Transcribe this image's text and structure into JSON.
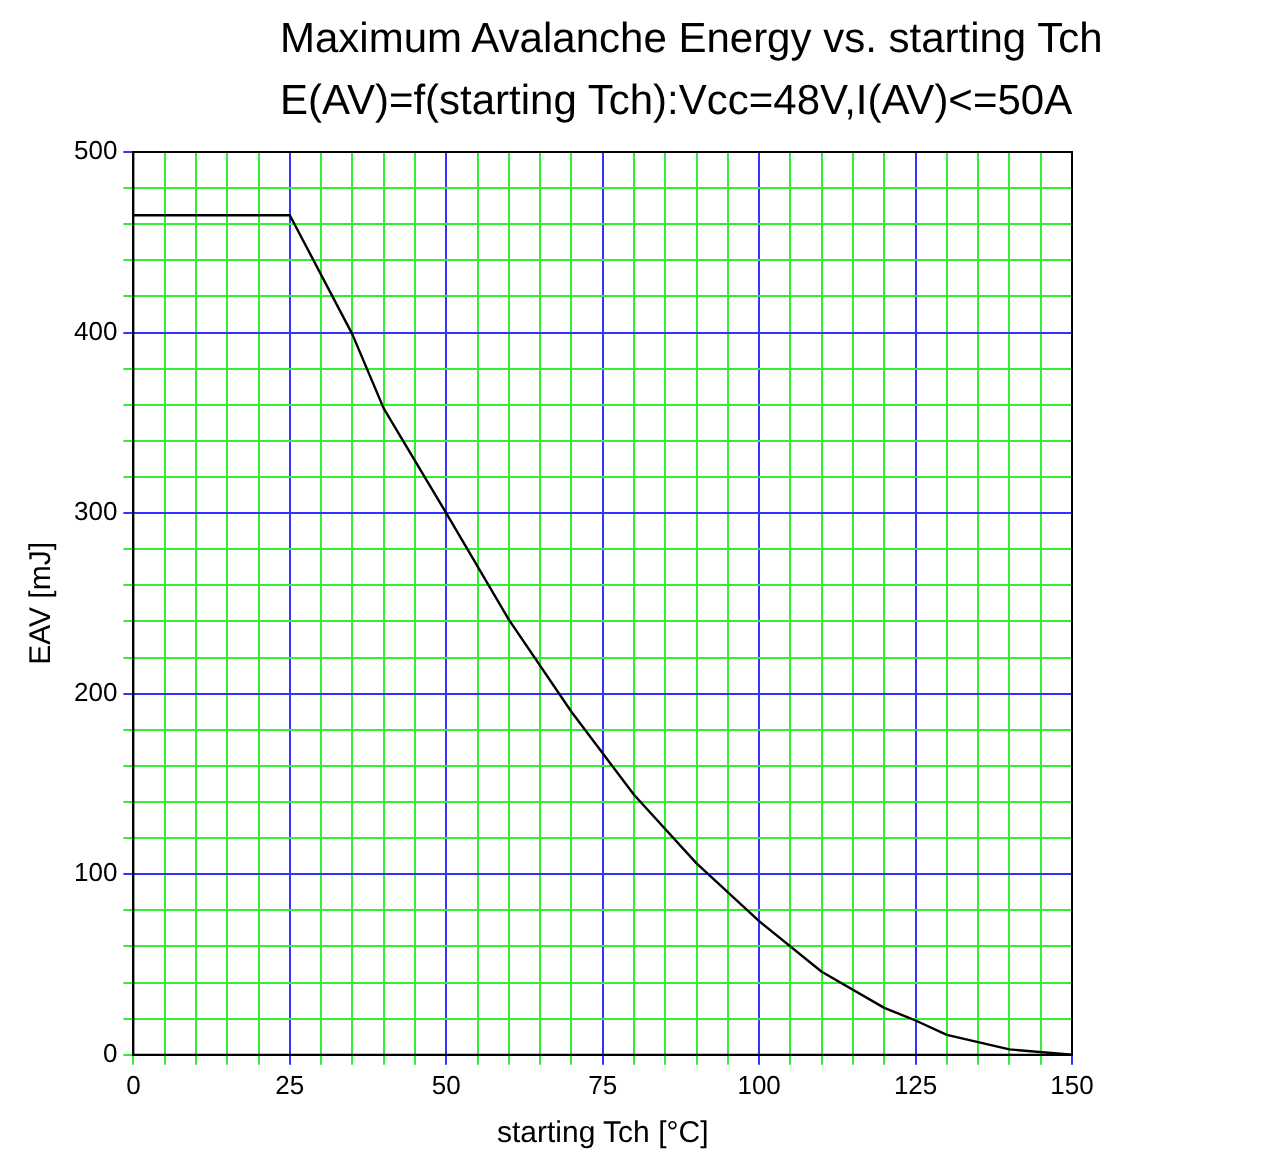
{
  "chart_data": {
    "type": "line",
    "title": "Maximum Avalanche Energy vs. starting Tch",
    "subtitle": "E(AV)=f(starting Tch):Vcc=48V,I(AV)<=50A",
    "xlabel": "starting Tch [°C]",
    "ylabel": "EAV [mJ]",
    "x": [
      0,
      25,
      35,
      40,
      50,
      60,
      70,
      75,
      80,
      90,
      100,
      110,
      120,
      125,
      130,
      140,
      150
    ],
    "series": [
      {
        "color": "#000000",
        "values": [
          465,
          465,
          399,
          358,
          300,
          241,
          190,
          167,
          144,
          106,
          74,
          46,
          26,
          19,
          11,
          3,
          0
        ]
      }
    ],
    "xlim": [
      0,
      150
    ],
    "xticks": [
      0,
      {
        "value": 5,
        "label": null
      },
      {
        "value": 10,
        "label": null
      },
      {
        "value": 15,
        "label": null
      },
      {
        "value": 20,
        "label": null
      },
      25,
      {
        "value": 30,
        "label": null
      },
      {
        "value": 35,
        "label": null
      },
      {
        "value": 40,
        "label": null
      },
      {
        "value": 45,
        "label": null
      },
      50,
      {
        "value": 55,
        "label": null
      },
      {
        "value": 60,
        "label": null
      },
      {
        "value": 65,
        "label": null
      },
      {
        "value": 70,
        "label": null
      },
      75,
      {
        "value": 80,
        "label": null
      },
      {
        "value": 85,
        "label": null
      },
      {
        "value": 90,
        "label": null
      },
      {
        "value": 95,
        "label": null
      },
      100,
      {
        "value": 105,
        "label": null
      },
      {
        "value": 110,
        "label": null
      },
      {
        "value": 115,
        "label": null
      },
      {
        "value": 120,
        "label": null
      },
      125,
      {
        "value": 130,
        "label": null
      },
      {
        "value": 135,
        "label": null
      },
      {
        "value": 140,
        "label": null
      },
      {
        "value": 145,
        "label": null
      },
      150
    ],
    "ylim": [
      0,
      500
    ],
    "yticks": [
      0,
      {
        "value": 20,
        "label": null
      },
      {
        "value": 40,
        "label": null
      },
      {
        "value": 60,
        "label": null
      },
      {
        "value": 80,
        "label": null
      },
      100,
      {
        "value": 120,
        "label": null
      },
      {
        "value": 140,
        "label": null
      },
      {
        "value": 160,
        "label": null
      },
      {
        "value": 180,
        "label": null
      },
      200,
      {
        "value": 220,
        "label": null
      },
      {
        "value": 240,
        "label": null
      },
      {
        "value": 260,
        "label": null
      },
      {
        "value": 280,
        "label": null
      },
      300,
      {
        "value": 320,
        "label": null
      },
      {
        "value": 340,
        "label": null
      },
      {
        "value": 360,
        "label": null
      },
      {
        "value": 380,
        "label": null
      },
      400,
      {
        "value": 420,
        "label": null
      },
      {
        "value": 440,
        "label": null
      },
      {
        "value": 460,
        "label": null
      },
      {
        "value": 480,
        "label": null
      },
      500
    ],
    "grid": true,
    "legend": false,
    "marker": "none",
    "line_style": "solid"
  }
}
